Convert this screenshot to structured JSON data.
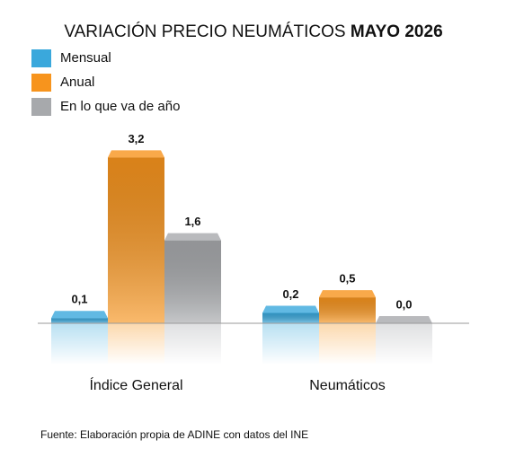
{
  "chart_data": {
    "type": "bar",
    "title": "VARIACIÓN PRECIO NEUMÁTICOS",
    "title_emphasis": "MAYO 2026",
    "categories": [
      "Índice General",
      "Neumáticos"
    ],
    "series": [
      {
        "name": "Mensual",
        "color": "#3aa8dc",
        "values": [
          0.1,
          0.2
        ],
        "value_labels": [
          "0,1",
          "0,2"
        ]
      },
      {
        "name": "Anual",
        "color": "#f7941d",
        "values": [
          3.2,
          0.5
        ],
        "value_labels": [
          "3,2",
          "0,5"
        ]
      },
      {
        "name": "En lo que va de año",
        "color": "#a7a9ac",
        "values": [
          1.6,
          0.0
        ],
        "value_labels": [
          "1,6",
          "0,0"
        ]
      }
    ],
    "ylim": [
      0,
      3.5
    ],
    "note": "Fuente: Elaboración propia de ADINE con datos del INE"
  }
}
